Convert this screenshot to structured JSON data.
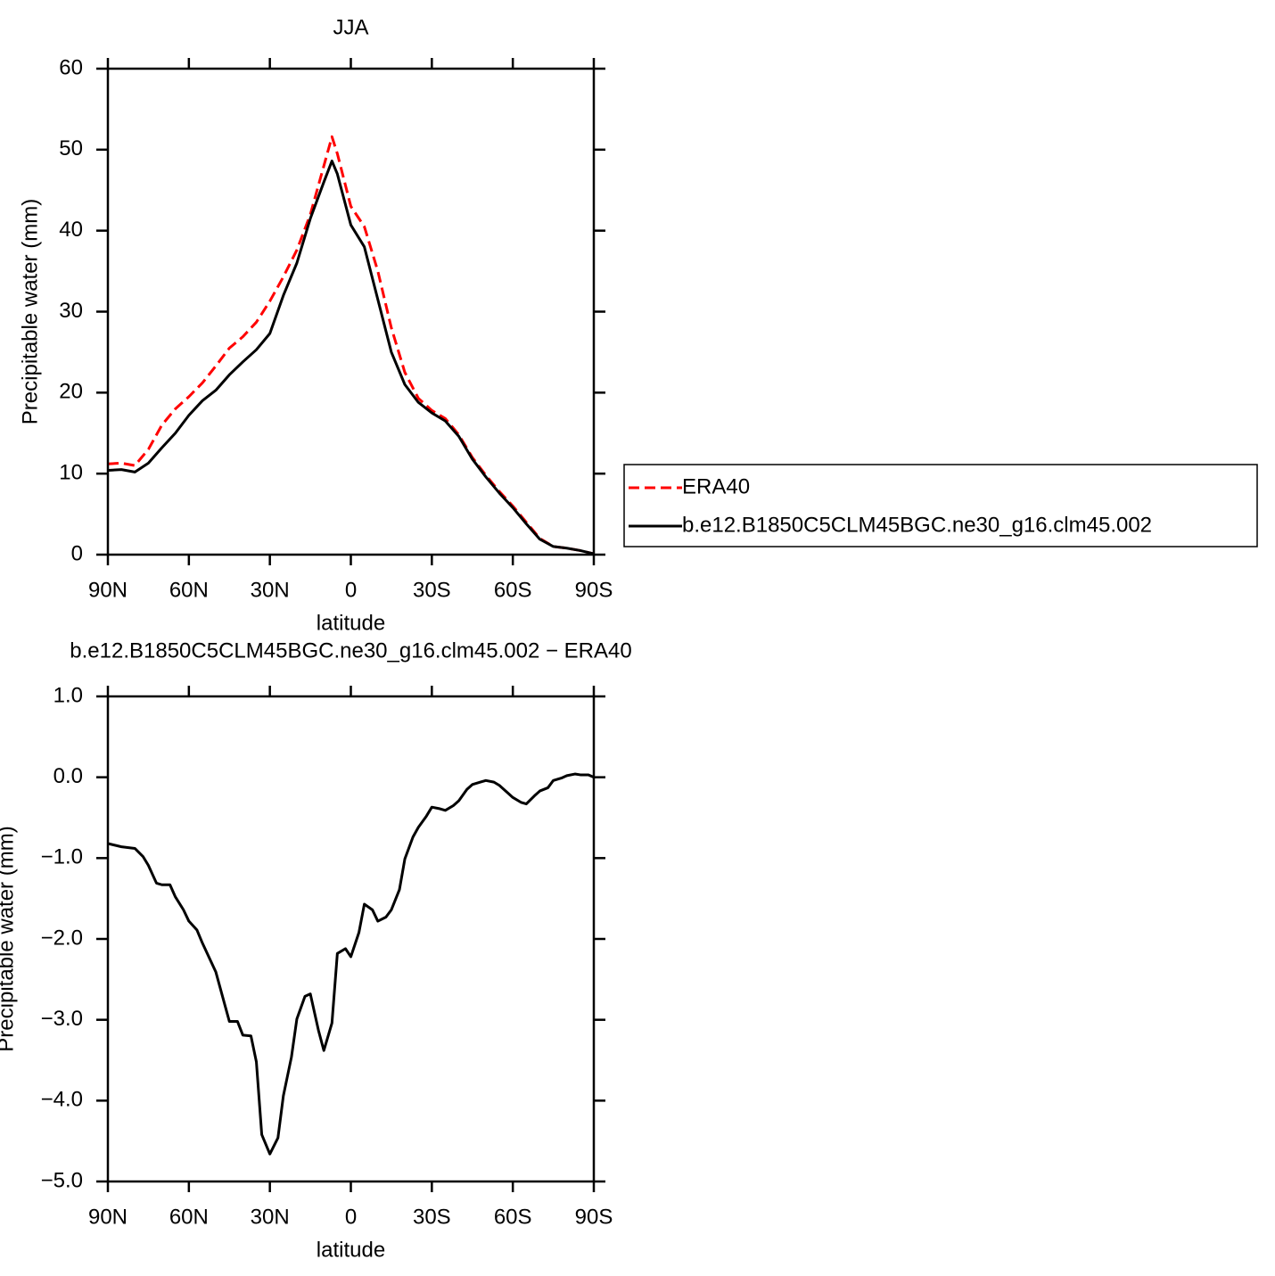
{
  "chart_data": [
    {
      "type": "line",
      "title": "JJA",
      "xlabel": "latitude",
      "ylabel": "Precipitable water (mm)",
      "xlim": [
        90,
        -90
      ],
      "xticks": [
        {
          "value": 90,
          "label": "90N"
        },
        {
          "value": 60,
          "label": "60N"
        },
        {
          "value": 30,
          "label": "30N"
        },
        0,
        {
          "value": -30,
          "label": "30S"
        },
        {
          "value": -60,
          "label": "60S"
        },
        {
          "value": -90,
          "label": "90S"
        }
      ],
      "ylim": [
        0,
        60
      ],
      "yticks": [
        0,
        10,
        20,
        30,
        40,
        50,
        60
      ],
      "legend": "right",
      "x": [
        90,
        85,
        80,
        75,
        70,
        65,
        60,
        55,
        50,
        45,
        40,
        35,
        30,
        25,
        20,
        15,
        10,
        7,
        5,
        0,
        -5,
        -10,
        -15,
        -20,
        -25,
        -30,
        -35,
        -40,
        -45,
        -50,
        -55,
        -60,
        -65,
        -70,
        -75,
        -80,
        -85,
        -90
      ],
      "series": [
        {
          "name": "ERA40",
          "color": "#ff0000",
          "line_style": "dashed",
          "values": [
            11.2,
            11.3,
            11.0,
            13.0,
            16.0,
            18.0,
            19.5,
            21.2,
            23.3,
            25.5,
            26.9,
            28.7,
            31.3,
            34.3,
            37.6,
            42.0,
            48.0,
            51.6,
            49.5,
            43.0,
            40.5,
            35.0,
            28.0,
            22.5,
            19.3,
            17.8,
            16.8,
            14.8,
            12.0,
            9.8,
            7.8,
            6.0,
            4.0,
            2.0,
            1.0,
            0.8,
            0.5,
            0.1
          ]
        },
        {
          "name": "b.e12.B1850C5CLM45BGC.ne30_g16.clm45.002",
          "color": "#000000",
          "line_style": "solid",
          "values": [
            10.4,
            10.5,
            10.2,
            11.3,
            13.2,
            15.0,
            17.2,
            19.0,
            20.3,
            22.2,
            23.8,
            25.3,
            27.3,
            32.0,
            36.0,
            41.5,
            46.0,
            48.6,
            47.0,
            40.7,
            38.0,
            31.5,
            25.0,
            21.0,
            18.8,
            17.5,
            16.5,
            14.6,
            11.8,
            9.6,
            7.6,
            5.8,
            3.8,
            1.9,
            1.0,
            0.8,
            0.5,
            0.1
          ]
        }
      ]
    },
    {
      "type": "line",
      "title": "b.e12.B1850C5CLM45BGC.ne30_g16.clm45.002 − ERA40",
      "xlabel": "latitude",
      "ylabel": "Precipitable water (mm)",
      "xlim": [
        90,
        -90
      ],
      "xticks": [
        {
          "value": 90,
          "label": "90N"
        },
        {
          "value": 60,
          "label": "60N"
        },
        {
          "value": 30,
          "label": "30N"
        },
        0,
        {
          "value": -30,
          "label": "30S"
        },
        {
          "value": -60,
          "label": "60S"
        },
        {
          "value": -90,
          "label": "90S"
        }
      ],
      "ylim": [
        -5,
        1
      ],
      "yticks": [
        {
          "value": 1,
          "label": "1.0"
        },
        {
          "value": 0,
          "label": "0.0"
        },
        {
          "value": -1,
          "label": "−1.0"
        },
        {
          "value": -2,
          "label": "−2.0"
        },
        {
          "value": -3,
          "label": "−3.0"
        },
        {
          "value": -4,
          "label": "−4.0"
        },
        {
          "value": -5,
          "label": "−5.0"
        }
      ],
      "x": [
        90,
        85,
        80,
        77,
        75,
        72,
        70,
        67,
        65,
        62,
        60,
        57,
        55,
        50,
        45,
        42,
        40,
        37,
        35,
        33,
        30,
        27,
        25,
        22,
        20,
        17,
        15,
        12,
        10,
        7,
        5,
        2,
        0,
        -3,
        -5,
        -8,
        -10,
        -13,
        -15,
        -18,
        -20,
        -23,
        -25,
        -28,
        -30,
        -33,
        -35,
        -38,
        -40,
        -43,
        -45,
        -48,
        -50,
        -53,
        -55,
        -60,
        -63,
        -65,
        -68,
        -70,
        -73,
        -75,
        -78,
        -80,
        -83,
        -85,
        -88,
        -90
      ],
      "series": [
        {
          "color": "#000000",
          "line_style": "solid",
          "values": [
            -0.82,
            -0.86,
            -0.88,
            -0.98,
            -1.09,
            -1.31,
            -1.33,
            -1.33,
            -1.48,
            -1.64,
            -1.78,
            -1.89,
            -2.05,
            -2.41,
            -3.02,
            -3.02,
            -3.19,
            -3.2,
            -3.52,
            -4.42,
            -4.66,
            -4.46,
            -3.94,
            -3.46,
            -2.99,
            -2.71,
            -2.68,
            -3.13,
            -3.38,
            -3.04,
            -2.18,
            -2.12,
            -2.22,
            -1.92,
            -1.57,
            -1.64,
            -1.78,
            -1.73,
            -1.64,
            -1.39,
            -1.01,
            -0.74,
            -0.62,
            -0.48,
            -0.37,
            -0.39,
            -0.41,
            -0.35,
            -0.29,
            -0.15,
            -0.09,
            -0.06,
            -0.04,
            -0.06,
            -0.1,
            -0.25,
            -0.31,
            -0.33,
            -0.23,
            -0.17,
            -0.13,
            -0.04,
            -0.01,
            0.02,
            0.04,
            0.03,
            0.03,
            0.0
          ]
        }
      ]
    }
  ]
}
